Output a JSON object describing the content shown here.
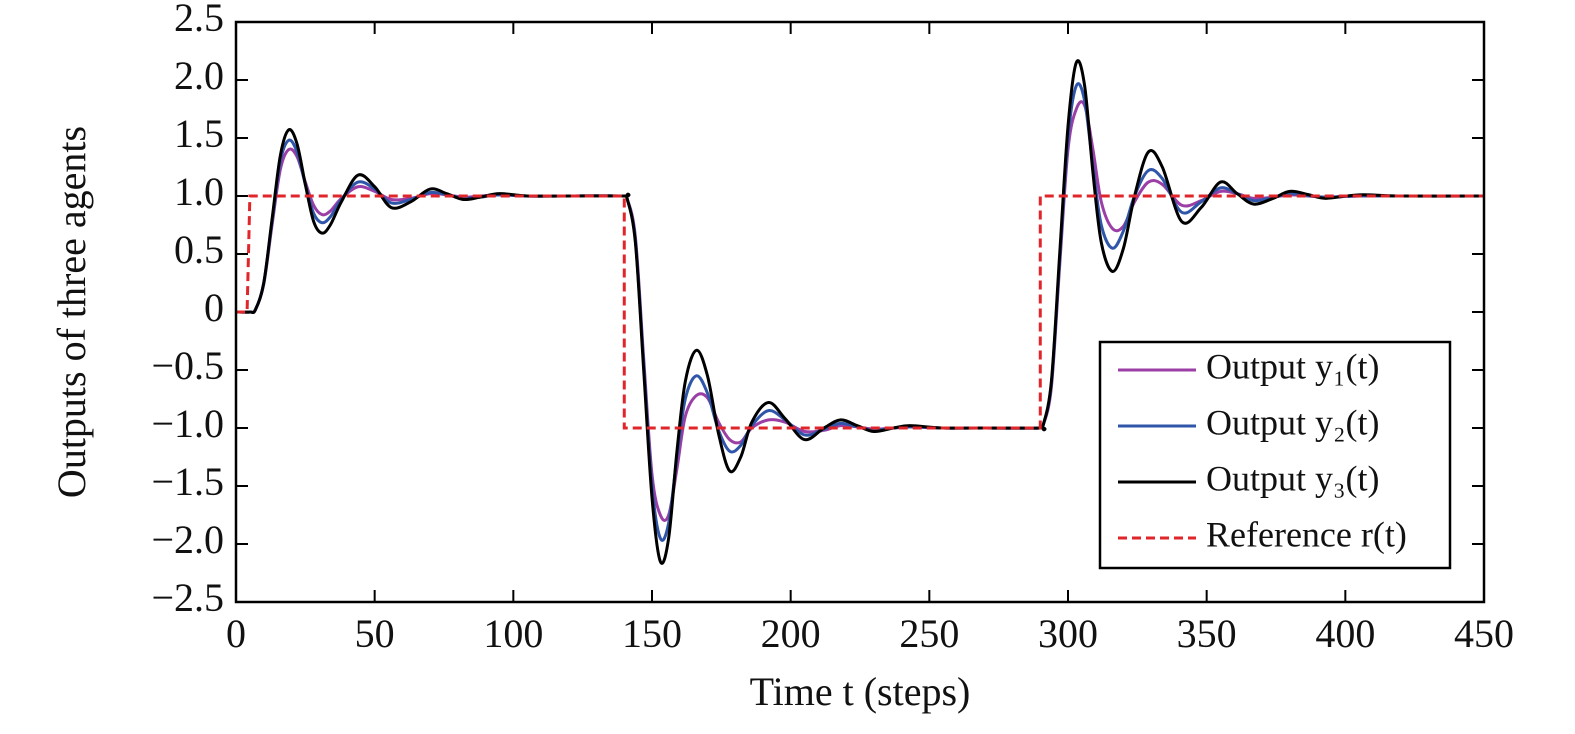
{
  "chart_data": {
    "type": "line",
    "xlabel": "Time t (steps)",
    "ylabel": "Outputs of three agents",
    "x": [
      0,
      5,
      7,
      10,
      13,
      16,
      19,
      22,
      25,
      28,
      31,
      34,
      38,
      44,
      50,
      56,
      63,
      70,
      76,
      82,
      88,
      95,
      105,
      120,
      140,
      141,
      144,
      147,
      150,
      153,
      156,
      159,
      162,
      166,
      170,
      174,
      178,
      182,
      186,
      192,
      198,
      205,
      212,
      218,
      224,
      230,
      237,
      243,
      255,
      270,
      290,
      291,
      294,
      297,
      300,
      303,
      306,
      309,
      312,
      316,
      320,
      324,
      329,
      334,
      341,
      348,
      355,
      361,
      367,
      374,
      380,
      387,
      393,
      405,
      420,
      450
    ],
    "series": [
      {
        "name": "Output y₁(t)",
        "color": "#9b3fa6",
        "linestyle": "solid",
        "values": [
          0,
          0,
          0.02,
          0.24,
          0.75,
          1.23,
          1.4,
          1.34,
          1.12,
          0.92,
          0.84,
          0.87,
          0.98,
          1.08,
          1.04,
          0.97,
          0.98,
          1.02,
          1.01,
          0.99,
          1.0,
          1.01,
          1,
          1,
          1,
          0.98,
          0.65,
          -0.4,
          -1.4,
          -1.75,
          -1.75,
          -1.35,
          -0.9,
          -0.72,
          -0.74,
          -0.95,
          -1.1,
          -1.12,
          -1.0,
          -0.93,
          -0.95,
          -1.03,
          -1.02,
          -0.98,
          -0.99,
          -1.01,
          -1.0,
          -0.99,
          -1,
          -1,
          -1,
          -0.98,
          -0.65,
          0.4,
          1.4,
          1.75,
          1.78,
          1.4,
          0.95,
          0.72,
          0.74,
          0.95,
          1.12,
          1.1,
          0.92,
          0.96,
          1.04,
          1.02,
          0.98,
          0.99,
          1.01,
          1.0,
          0.99,
          1,
          1,
          1
        ]
      },
      {
        "name": "Output y₂(t)",
        "color": "#2f56a8",
        "linestyle": "solid",
        "values": [
          0,
          0,
          0.02,
          0.25,
          0.78,
          1.3,
          1.48,
          1.38,
          1.1,
          0.85,
          0.77,
          0.82,
          0.97,
          1.12,
          1.06,
          0.94,
          0.97,
          1.03,
          1.01,
          0.98,
          0.99,
          1.01,
          1,
          1,
          1,
          0.98,
          0.62,
          -0.45,
          -1.5,
          -1.95,
          -1.82,
          -1.25,
          -0.75,
          -0.55,
          -0.7,
          -1.02,
          -1.2,
          -1.15,
          -0.98,
          -0.85,
          -0.93,
          -1.06,
          -1.01,
          -0.96,
          -0.99,
          -1.02,
          -1.0,
          -0.99,
          -1,
          -1,
          -1,
          -0.98,
          -0.62,
          0.45,
          1.5,
          1.95,
          1.82,
          1.25,
          0.75,
          0.55,
          0.7,
          1.0,
          1.22,
          1.15,
          0.86,
          0.95,
          1.07,
          1.02,
          0.96,
          0.99,
          1.02,
          1.0,
          0.99,
          1.0,
          1,
          1
        ]
      },
      {
        "name": "Output y₃(t)",
        "color": "#000000",
        "linestyle": "solid",
        "values": [
          0,
          0,
          0.02,
          0.25,
          0.8,
          1.35,
          1.57,
          1.45,
          1.1,
          0.78,
          0.68,
          0.75,
          0.95,
          1.18,
          1.08,
          0.9,
          0.95,
          1.06,
          1.02,
          0.97,
          0.99,
          1.02,
          1.0,
          1.0,
          1.0,
          0.98,
          0.6,
          -0.5,
          -1.6,
          -2.15,
          -1.95,
          -1.2,
          -0.6,
          -0.33,
          -0.55,
          -1.05,
          -1.37,
          -1.25,
          -0.95,
          -0.78,
          -0.92,
          -1.1,
          -1.0,
          -0.93,
          -0.98,
          -1.03,
          -1.0,
          -0.98,
          -1.0,
          -1.0,
          -1.0,
          -0.98,
          -0.6,
          0.5,
          1.6,
          2.15,
          1.95,
          1.2,
          0.6,
          0.35,
          0.55,
          1.0,
          1.38,
          1.25,
          0.78,
          0.9,
          1.12,
          1.02,
          0.93,
          0.98,
          1.04,
          1.01,
          0.98,
          1.01,
          1,
          1
        ]
      },
      {
        "name": "Reference r(t)",
        "color": "#e0262a",
        "linestyle": "dashed",
        "x": [
          0,
          4,
          5,
          140,
          140,
          290,
          290,
          450
        ],
        "values": [
          0,
          0,
          1,
          1,
          -1,
          -1,
          1,
          1
        ]
      }
    ],
    "xlim": [
      0,
      450
    ],
    "xticks": [
      0,
      50,
      100,
      150,
      200,
      250,
      300,
      350,
      400,
      450
    ],
    "ylim": [
      -2.5,
      2.5
    ],
    "yticks": [
      {
        "value": -2.5,
        "label": "−2.5"
      },
      {
        "value": -2.0,
        "label": "−2.0"
      },
      {
        "value": -1.5,
        "label": "−1.5"
      },
      {
        "value": -1.0,
        "label": "−1.0"
      },
      {
        "value": -0.5,
        "label": "−0.5"
      },
      0,
      0.5,
      {
        "value": 1.0,
        "label": "1.0"
      },
      1.5,
      {
        "value": 2.0,
        "label": "2.0"
      },
      2.5
    ],
    "legend": "lower right",
    "grid": false
  }
}
